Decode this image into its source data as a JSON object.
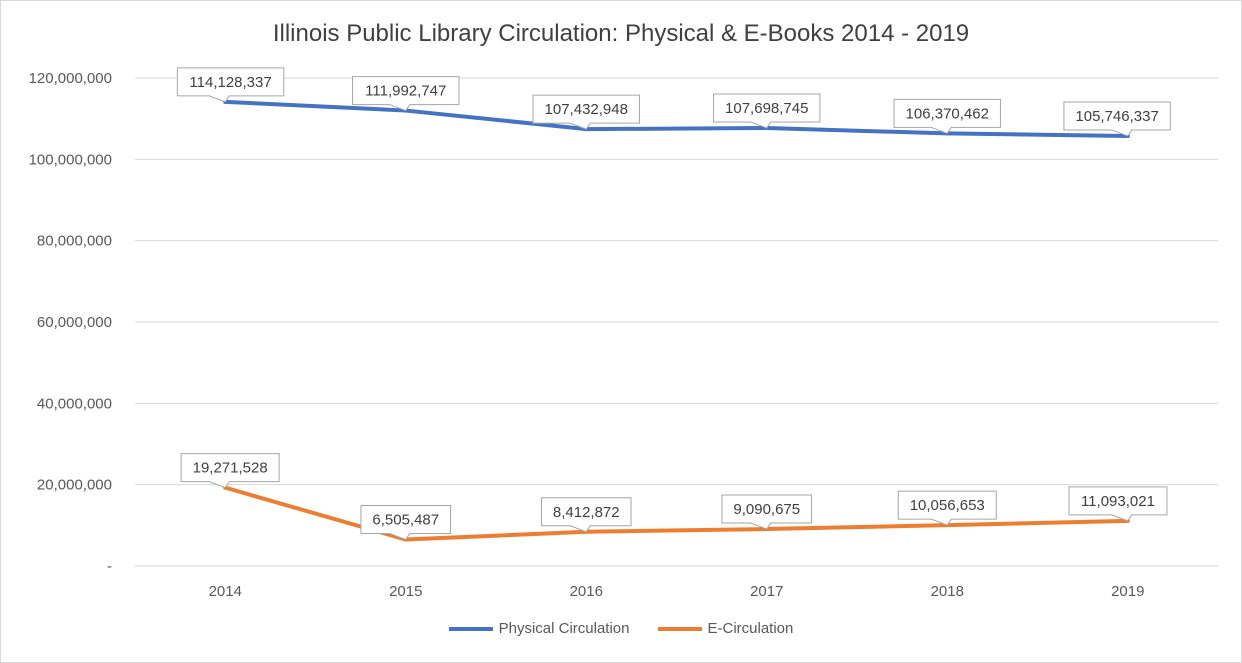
{
  "chart_data": {
    "type": "line",
    "title": "Illinois Public Library Circulation: Physical & E-Books 2014 - 2019",
    "xlabel": "",
    "ylabel": "",
    "categories": [
      "2014",
      "2015",
      "2016",
      "2017",
      "2018",
      "2019"
    ],
    "ylim": [
      0,
      120000000
    ],
    "yticks": [
      "-",
      "20,000,000",
      "40,000,000",
      "60,000,000",
      "80,000,000",
      "100,000,000",
      "120,000,000"
    ],
    "grid": true,
    "legend_position": "bottom",
    "series": [
      {
        "name": "Physical Circulation",
        "color": "#4472c4",
        "values": [
          114128337,
          111992747,
          107432948,
          107698745,
          106370462,
          105746337
        ],
        "labels": [
          "114,128,337",
          "111,992,747",
          "107,432,948",
          "107,698,745",
          "106,370,462",
          "105,746,337"
        ]
      },
      {
        "name": "E-Circulation",
        "color": "#ed7d31",
        "values": [
          19271528,
          6505487,
          8412872,
          9090675,
          10056653,
          11093021
        ],
        "labels": [
          "19,271,528",
          "6,505,487",
          "8,412,872",
          "9,090,675",
          "10,056,653",
          "11,093,021"
        ]
      }
    ]
  }
}
